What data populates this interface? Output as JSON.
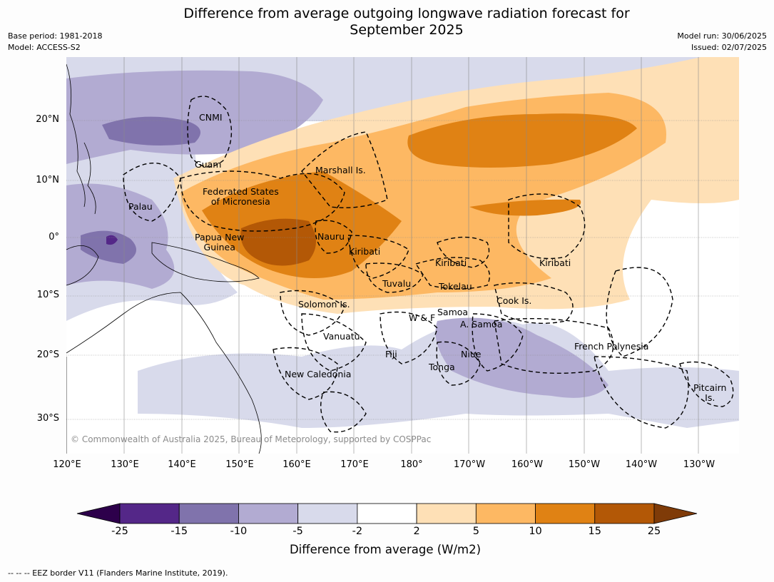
{
  "header": {
    "title_line1": "Difference from average outgoing longwave radiation forecast for",
    "title_line2": "September 2025",
    "base_period": "Base period: 1981-2018",
    "model": "Model: ACCESS-S2",
    "model_run": "Model run: 30/06/2025",
    "issued": "Issued: 02/07/2025"
  },
  "axes": {
    "lat_labels": [
      "20°N",
      "10°N",
      "0°",
      "10°S",
      "20°S",
      "30°S"
    ],
    "lon_labels": [
      "120°E",
      "130°E",
      "140°E",
      "150°E",
      "160°E",
      "170°E",
      "180°",
      "170°W",
      "160°W",
      "150°W",
      "140°W",
      "130°W"
    ]
  },
  "places": {
    "cnmi": "CNMI",
    "guam": "Guam",
    "marshall": "Marshall Is.",
    "fsm": "Federated States\nof Micronesia",
    "palau": "Palau",
    "png": "Papua New\nGuinea",
    "nauru": "Nauru",
    "kiribati_west": "Kiribati",
    "kiribati_central": "Kiribati",
    "kiribati_east": "Kiribati",
    "tuvalu": "Tuvalu",
    "tokelau": "Tokelau",
    "solomon": "Solomon Is.",
    "cook": "Cook Is.",
    "samoa": "Samoa",
    "wf": "W & F",
    "asamoa": "A. Samoa",
    "vanuatu": "Vanuatu",
    "fiji": "Fiji",
    "niue": "Niue",
    "tonga": "Tonga",
    "newcal": "New Caledonia",
    "frpoly": "French Polynesia",
    "pitcairn": "Pitcairn\nIs."
  },
  "copyright": "© Commonwealth of Australia 2025, Bureau of Meteorology, supported by COSPPac",
  "legend": {
    "title": "Difference from average (W/m2)",
    "ticks": [
      "-25",
      "-15",
      "-10",
      "-5",
      "-2",
      "2",
      "5",
      "10",
      "15",
      "25"
    ],
    "colors": [
      "#2d004b",
      "#542788",
      "#8073ac",
      "#b2abd2",
      "#d8daeb",
      "#ffffff",
      "#fee0b6",
      "#fdb863",
      "#e08214",
      "#b35806",
      "#7f3b08"
    ]
  },
  "footnote": "--  --  -- EEZ border V11 (Flanders Marine Institute, 2019)."
}
